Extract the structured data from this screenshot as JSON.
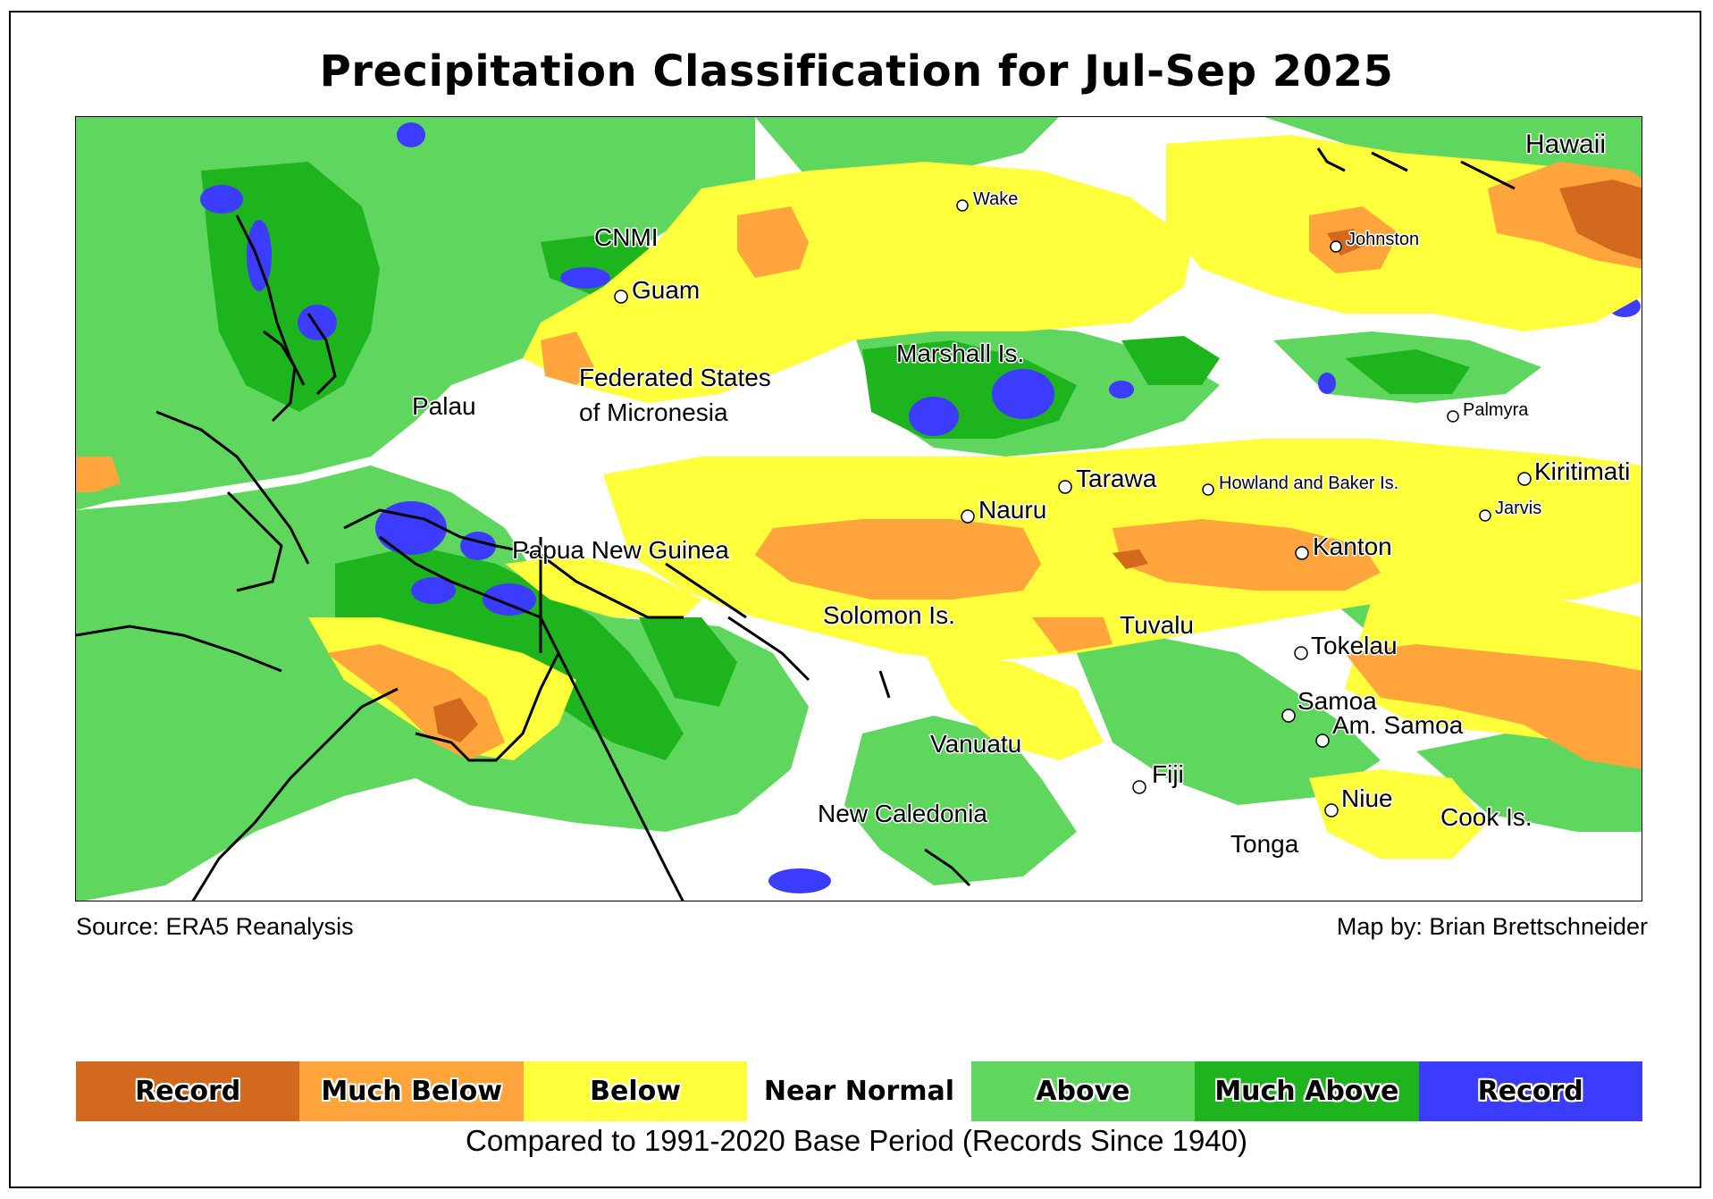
{
  "title": "Precipitation Classification for Jul-Sep 2025",
  "source": "Source: ERA5 Reanalysis",
  "credit": "Map by: Brian Brettschneider",
  "base_period": "Compared to 1991-2020 Base Period   (Records Since 1940)",
  "colors": {
    "record_dry": "#D2691E",
    "much_below": "#FFA53C",
    "below": "#FFFF3C",
    "near_normal": "#FFFFFF",
    "above": "#5FD75F",
    "much_above": "#1EB41E",
    "record_wet": "#3C3CFF",
    "coastline": "#000000"
  },
  "legend": [
    {
      "label": "Record",
      "color": "#D2691E"
    },
    {
      "label": "Much Below",
      "color": "#FFA53C"
    },
    {
      "label": "Below",
      "color": "#FFFF3C"
    },
    {
      "label": "Near Normal",
      "color": "#FFFFFF"
    },
    {
      "label": "Above",
      "color": "#5FD75F"
    },
    {
      "label": "Much Above",
      "color": "#1EB41E"
    },
    {
      "label": "Record",
      "color": "#3C3CFF"
    }
  ],
  "places": [
    {
      "name": "Hawaii"
    },
    {
      "name": "Wake"
    },
    {
      "name": "Johnston"
    },
    {
      "name": "CNMI"
    },
    {
      "name": "Guam"
    },
    {
      "name": "Marshall Is."
    },
    {
      "name": "Federated States"
    },
    {
      "name": "of Micronesia"
    },
    {
      "name": "Palau"
    },
    {
      "name": "Palmyra"
    },
    {
      "name": "Kiritimati"
    },
    {
      "name": "Tarawa"
    },
    {
      "name": "Howland and Baker Is."
    },
    {
      "name": "Jarvis"
    },
    {
      "name": "Nauru"
    },
    {
      "name": "Papua New Guinea"
    },
    {
      "name": "Kanton"
    },
    {
      "name": "Solomon Is."
    },
    {
      "name": "Tuvalu"
    },
    {
      "name": "Tokelau"
    },
    {
      "name": "Samoa"
    },
    {
      "name": "Am. Samoa"
    },
    {
      "name": "Vanuatu"
    },
    {
      "name": "Fiji"
    },
    {
      "name": "Niue"
    },
    {
      "name": "Cook Is."
    },
    {
      "name": "New Caledonia"
    },
    {
      "name": "Tonga"
    }
  ]
}
